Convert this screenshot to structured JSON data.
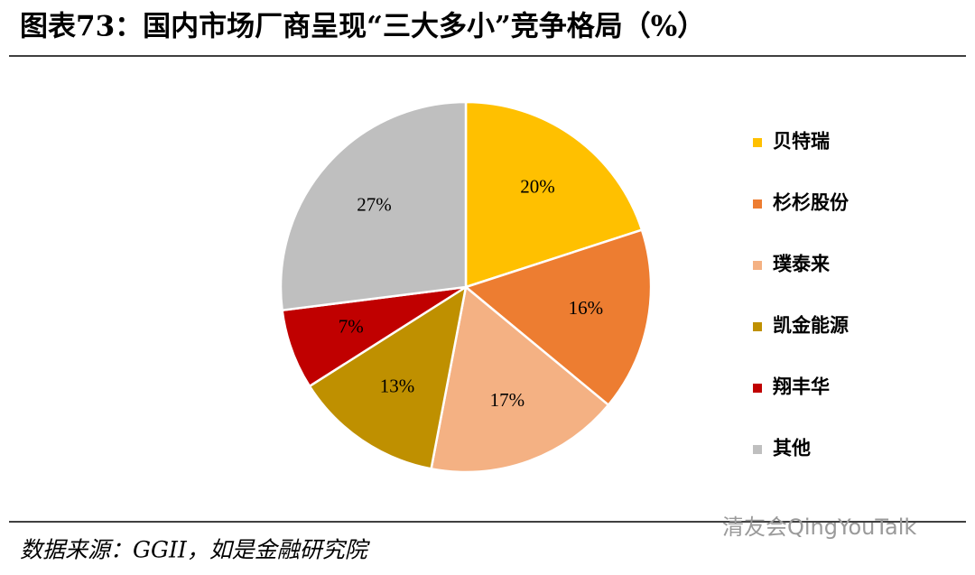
{
  "chart_data": {
    "type": "pie",
    "title": "图表73：国内市场厂商呈现“三大多小”竞争格局（%）",
    "categories": [
      "贝特瑞",
      "杉杉股份",
      "璞泰来",
      "凯金能源",
      "翔丰华",
      "其他"
    ],
    "values": [
      20,
      16,
      17,
      13,
      7,
      27
    ],
    "value_labels": [
      "20%",
      "16%",
      "17%",
      "13%",
      "7%",
      "27%"
    ],
    "colors": [
      "#FFC000",
      "#ED7D31",
      "#F4B183",
      "#BF9000",
      "#C00000",
      "#BFBFBF"
    ],
    "legend": "right",
    "source": "数据来源：GGII，如是金融研究院",
    "watermark": "清友会QingYouTalk"
  }
}
